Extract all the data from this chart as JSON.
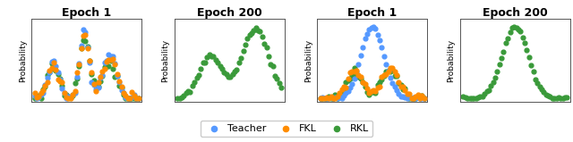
{
  "titles": [
    "Epoch 1",
    "Epoch 200",
    "Epoch 1",
    "Epoch 200"
  ],
  "ylabel": "Probability",
  "teacher_color": "#5599ff",
  "fkl_color": "#ff8c00",
  "rkl_color": "#3a9a3a",
  "legend_labels": [
    "Teacher",
    "FKL",
    "RKL"
  ],
  "dot_size": 12,
  "title_fontsize": 9,
  "label_fontsize": 6.5,
  "legend_fontsize": 8
}
